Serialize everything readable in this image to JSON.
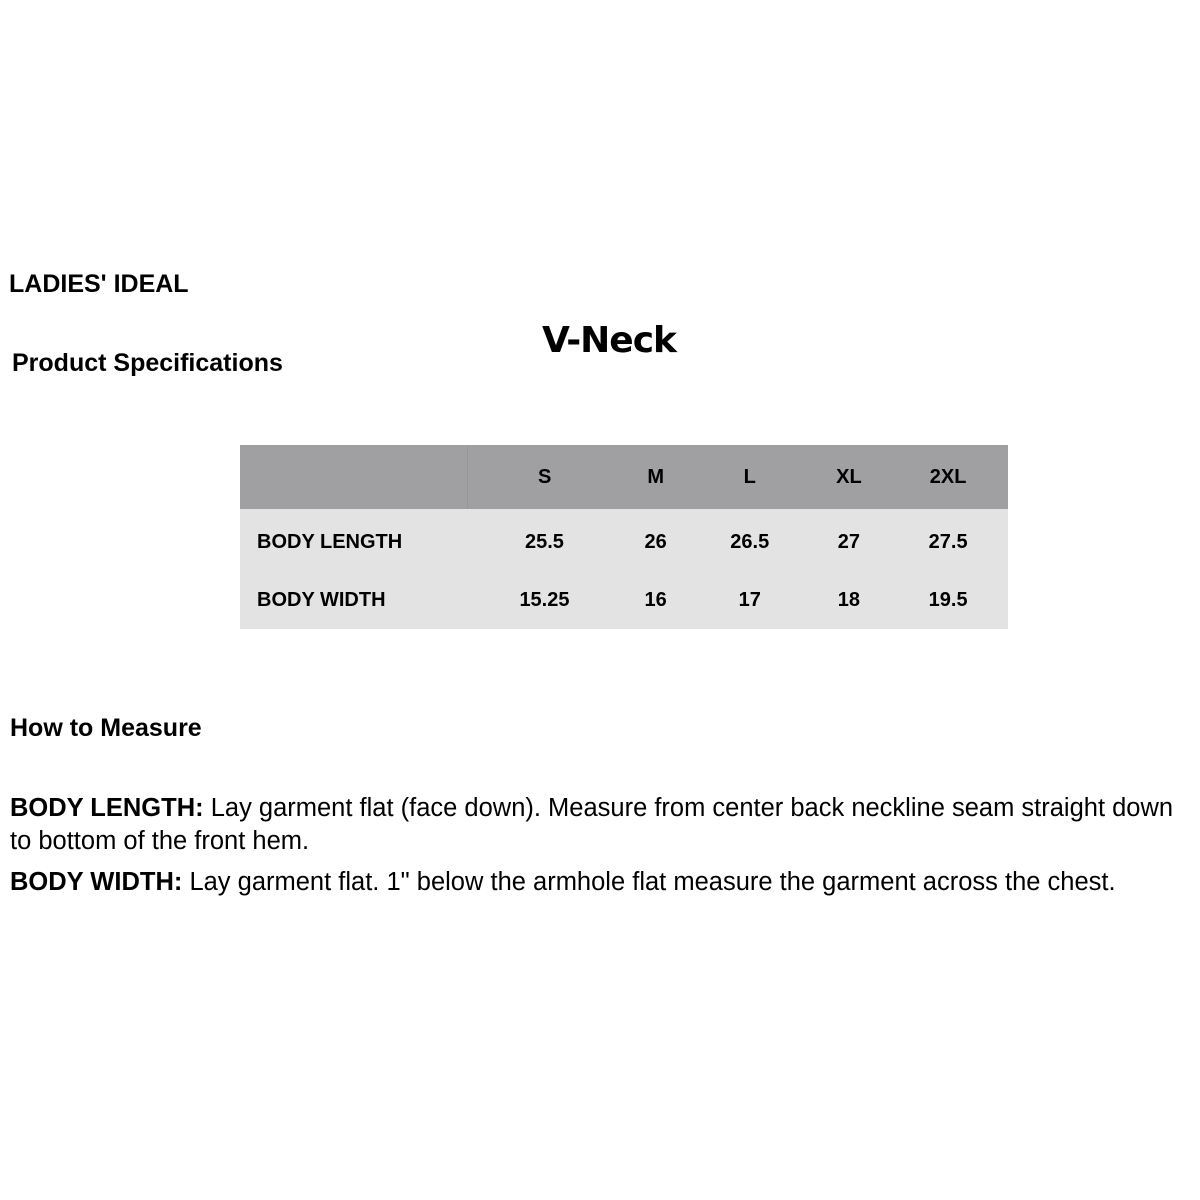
{
  "brand": "LADIES' IDEAL",
  "subtitle": "Product Specifications",
  "title": "V-Neck",
  "table": {
    "sizes": [
      "S",
      "M",
      "L",
      "XL",
      "2XL"
    ],
    "rows": [
      {
        "label": "BODY LENGTH",
        "values": [
          "25.5",
          "26",
          "26.5",
          "27",
          "27.5"
        ]
      },
      {
        "label": "BODY WIDTH",
        "values": [
          "15.25",
          "16",
          "17",
          "18",
          "19.5"
        ]
      }
    ],
    "header_color": "#a09fa1",
    "body_color": "#e3e3e3"
  },
  "how_to": {
    "heading": "How to Measure",
    "items": [
      {
        "term": "BODY LENGTH:",
        "text": " Lay garment flat (face down). Measure from center back neckline seam straight down to bottom of the front hem."
      },
      {
        "term": "BODY WIDTH:",
        "text": " Lay garment flat. 1\" below the armhole flat measure the garment across the chest."
      }
    ]
  }
}
